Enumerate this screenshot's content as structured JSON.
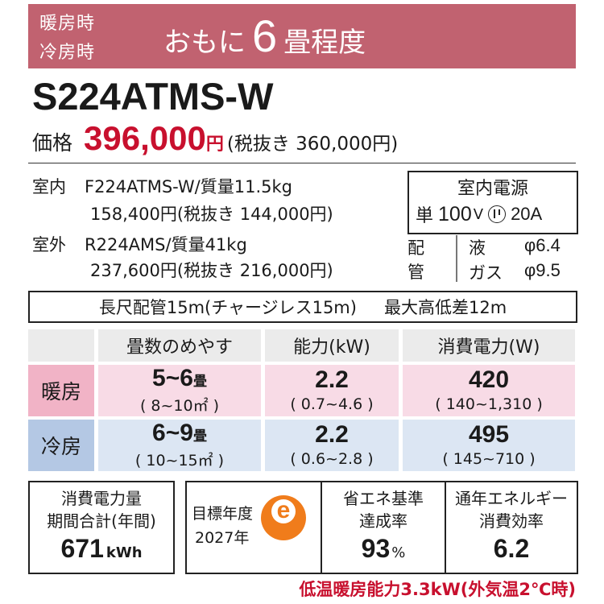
{
  "banner": {
    "heating": "暖房時",
    "cooling": "冷房時",
    "prefix": "おもに",
    "number": "6",
    "suffix": "畳程度"
  },
  "model": "S224ATMS-W",
  "price": {
    "label": "価格",
    "value": "396,000",
    "unit": "円",
    "tax_excluded": "(税抜き 360,000円)"
  },
  "indoor": {
    "label": "室内",
    "line1": "F224ATMS-W/質量11.5kg",
    "line2": "158,400円(税抜き 144,000円)"
  },
  "outdoor": {
    "label": "室外",
    "line1": "R224AMS/質量41kg",
    "line2": "237,600円(税抜き 216,000円)"
  },
  "power": {
    "title": "室内電源",
    "phase": "単",
    "voltage": "100",
    "voltage_unit": "V",
    "amperage": "20A"
  },
  "piping": {
    "label": "配管",
    "liquid_label": "液",
    "liquid_value": "φ6.4",
    "gas_label": "ガス",
    "gas_value": "φ9.5"
  },
  "long_pipe": {
    "charge_less": "長尺配管15m(チャージレス15m)",
    "max_height": "最大高低差12m"
  },
  "table": {
    "headers": [
      "畳数のめやす",
      "能力(kW)",
      "消費電力(W)"
    ],
    "heating": {
      "label": "暖房",
      "tatami": "5~6",
      "tatami_unit": "畳",
      "tatami_range": "( 8~10㎡ )",
      "capacity": "2.2",
      "capacity_range": "( 0.7~4.6 )",
      "power": "420",
      "power_range": "( 140~1,310 )"
    },
    "cooling": {
      "label": "冷房",
      "tatami": "6~9",
      "tatami_unit": "畳",
      "tatami_range": "( 10~15㎡ )",
      "capacity": "2.2",
      "capacity_range": "( 0.6~2.8 )",
      "power": "495",
      "power_range": "( 145~710 )"
    }
  },
  "annual": {
    "line1": "消費電力量",
    "line2": "期間合計(年間)",
    "value": "671",
    "unit": "kWh"
  },
  "target": {
    "line1": "目標年度",
    "line2": "2027年",
    "mark": "e"
  },
  "achievement": {
    "line1": "省エネ基準",
    "line2": "達成率",
    "value": "93",
    "unit": "%"
  },
  "apf": {
    "line1": "通年エネルギー",
    "line2": "消費効率",
    "value": "6.2"
  },
  "low_temp": "低温暖房能力3.3kW(外気温2℃時)",
  "colors": {
    "banner": "#c16270",
    "price": "#c8102e",
    "heating_label": "#f1b3c6",
    "heating_row": "#f8dbe6",
    "cooling_label": "#b4c8e4",
    "cooling_row": "#dce6f3",
    "eco_mark": "#f07c1b"
  }
}
